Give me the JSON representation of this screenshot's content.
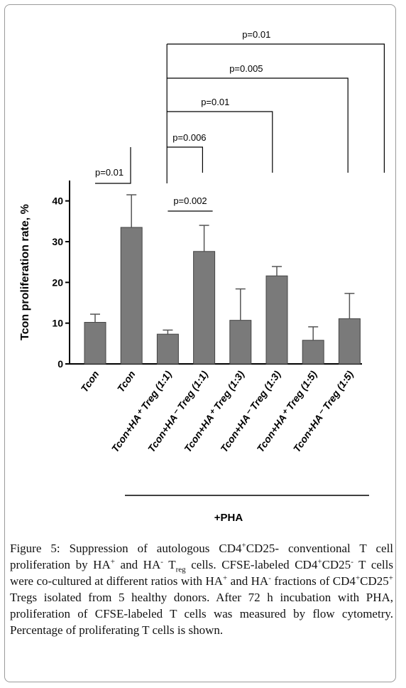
{
  "chart_data": {
    "type": "bar",
    "ylabel": "Tcon proliferation rate, %",
    "ylim": [
      0,
      45
    ],
    "yticks": [
      0,
      10,
      20,
      30,
      40
    ],
    "categories": [
      "Tcon",
      "Tcon",
      "Tcon+HA⁺ Treg (1:1)",
      "Tcon+HA⁻ Treg (1:1)",
      "Tcon+HA⁺ Treg (1:3)",
      "Tcon+HA⁻ Treg (1:3)",
      "Tcon+HA⁺ Treg (1:5)",
      "Tcon+HA⁻ Treg (1:5)"
    ],
    "values": [
      10.2,
      33.5,
      7.3,
      27.6,
      10.7,
      21.6,
      5.8,
      11.1
    ],
    "errors": [
      2.0,
      8.0,
      1.0,
      6.4,
      7.7,
      2.3,
      3.3,
      6.2
    ],
    "bar_color": "#7a7a7a",
    "group_label": "+PHA",
    "group_categories": [
      1,
      2,
      3,
      4,
      5,
      6,
      7
    ],
    "significance": [
      {
        "from": 0,
        "to": 1,
        "label": "p=0.01"
      },
      {
        "from": 1,
        "to": 2,
        "label": "p=0.006"
      },
      {
        "from": 2,
        "to": 3,
        "label": "p=0.002"
      },
      {
        "from": 1,
        "to": 4,
        "label": "p=0.01"
      },
      {
        "from": 1,
        "to": 6,
        "label": "p=0.005"
      },
      {
        "from": 1,
        "to": 7,
        "label": "p=0.01"
      }
    ]
  },
  "caption": {
    "figure_label": "Figure 5:",
    "p1": " Suppression of autologous CD4",
    "s1": "+",
    "p2": "CD25- conventional T cell proliferation by HA",
    "s2": "+",
    "p3": " and HA",
    "s3": "-",
    "p4": " T",
    "sub1": "reg",
    "p5": " cells. CFSE-labeled CD4",
    "s4": "+",
    "p6": "CD25",
    "s5": "-",
    "p7": " T cells were co-cultured at different ratios with HA",
    "s6": "+",
    "p8": " and HA",
    "s7": "-",
    "p9": " fractions of CD4",
    "s8": "+",
    "p10": "CD25",
    "s9": "+",
    "p11": " Tregs isolated from 5 healthy donors. After 72 h incubation with PHA, proliferation of CFSE-labeled T cells was measured by flow cytometry. Percentage of proliferating T cells is shown."
  }
}
